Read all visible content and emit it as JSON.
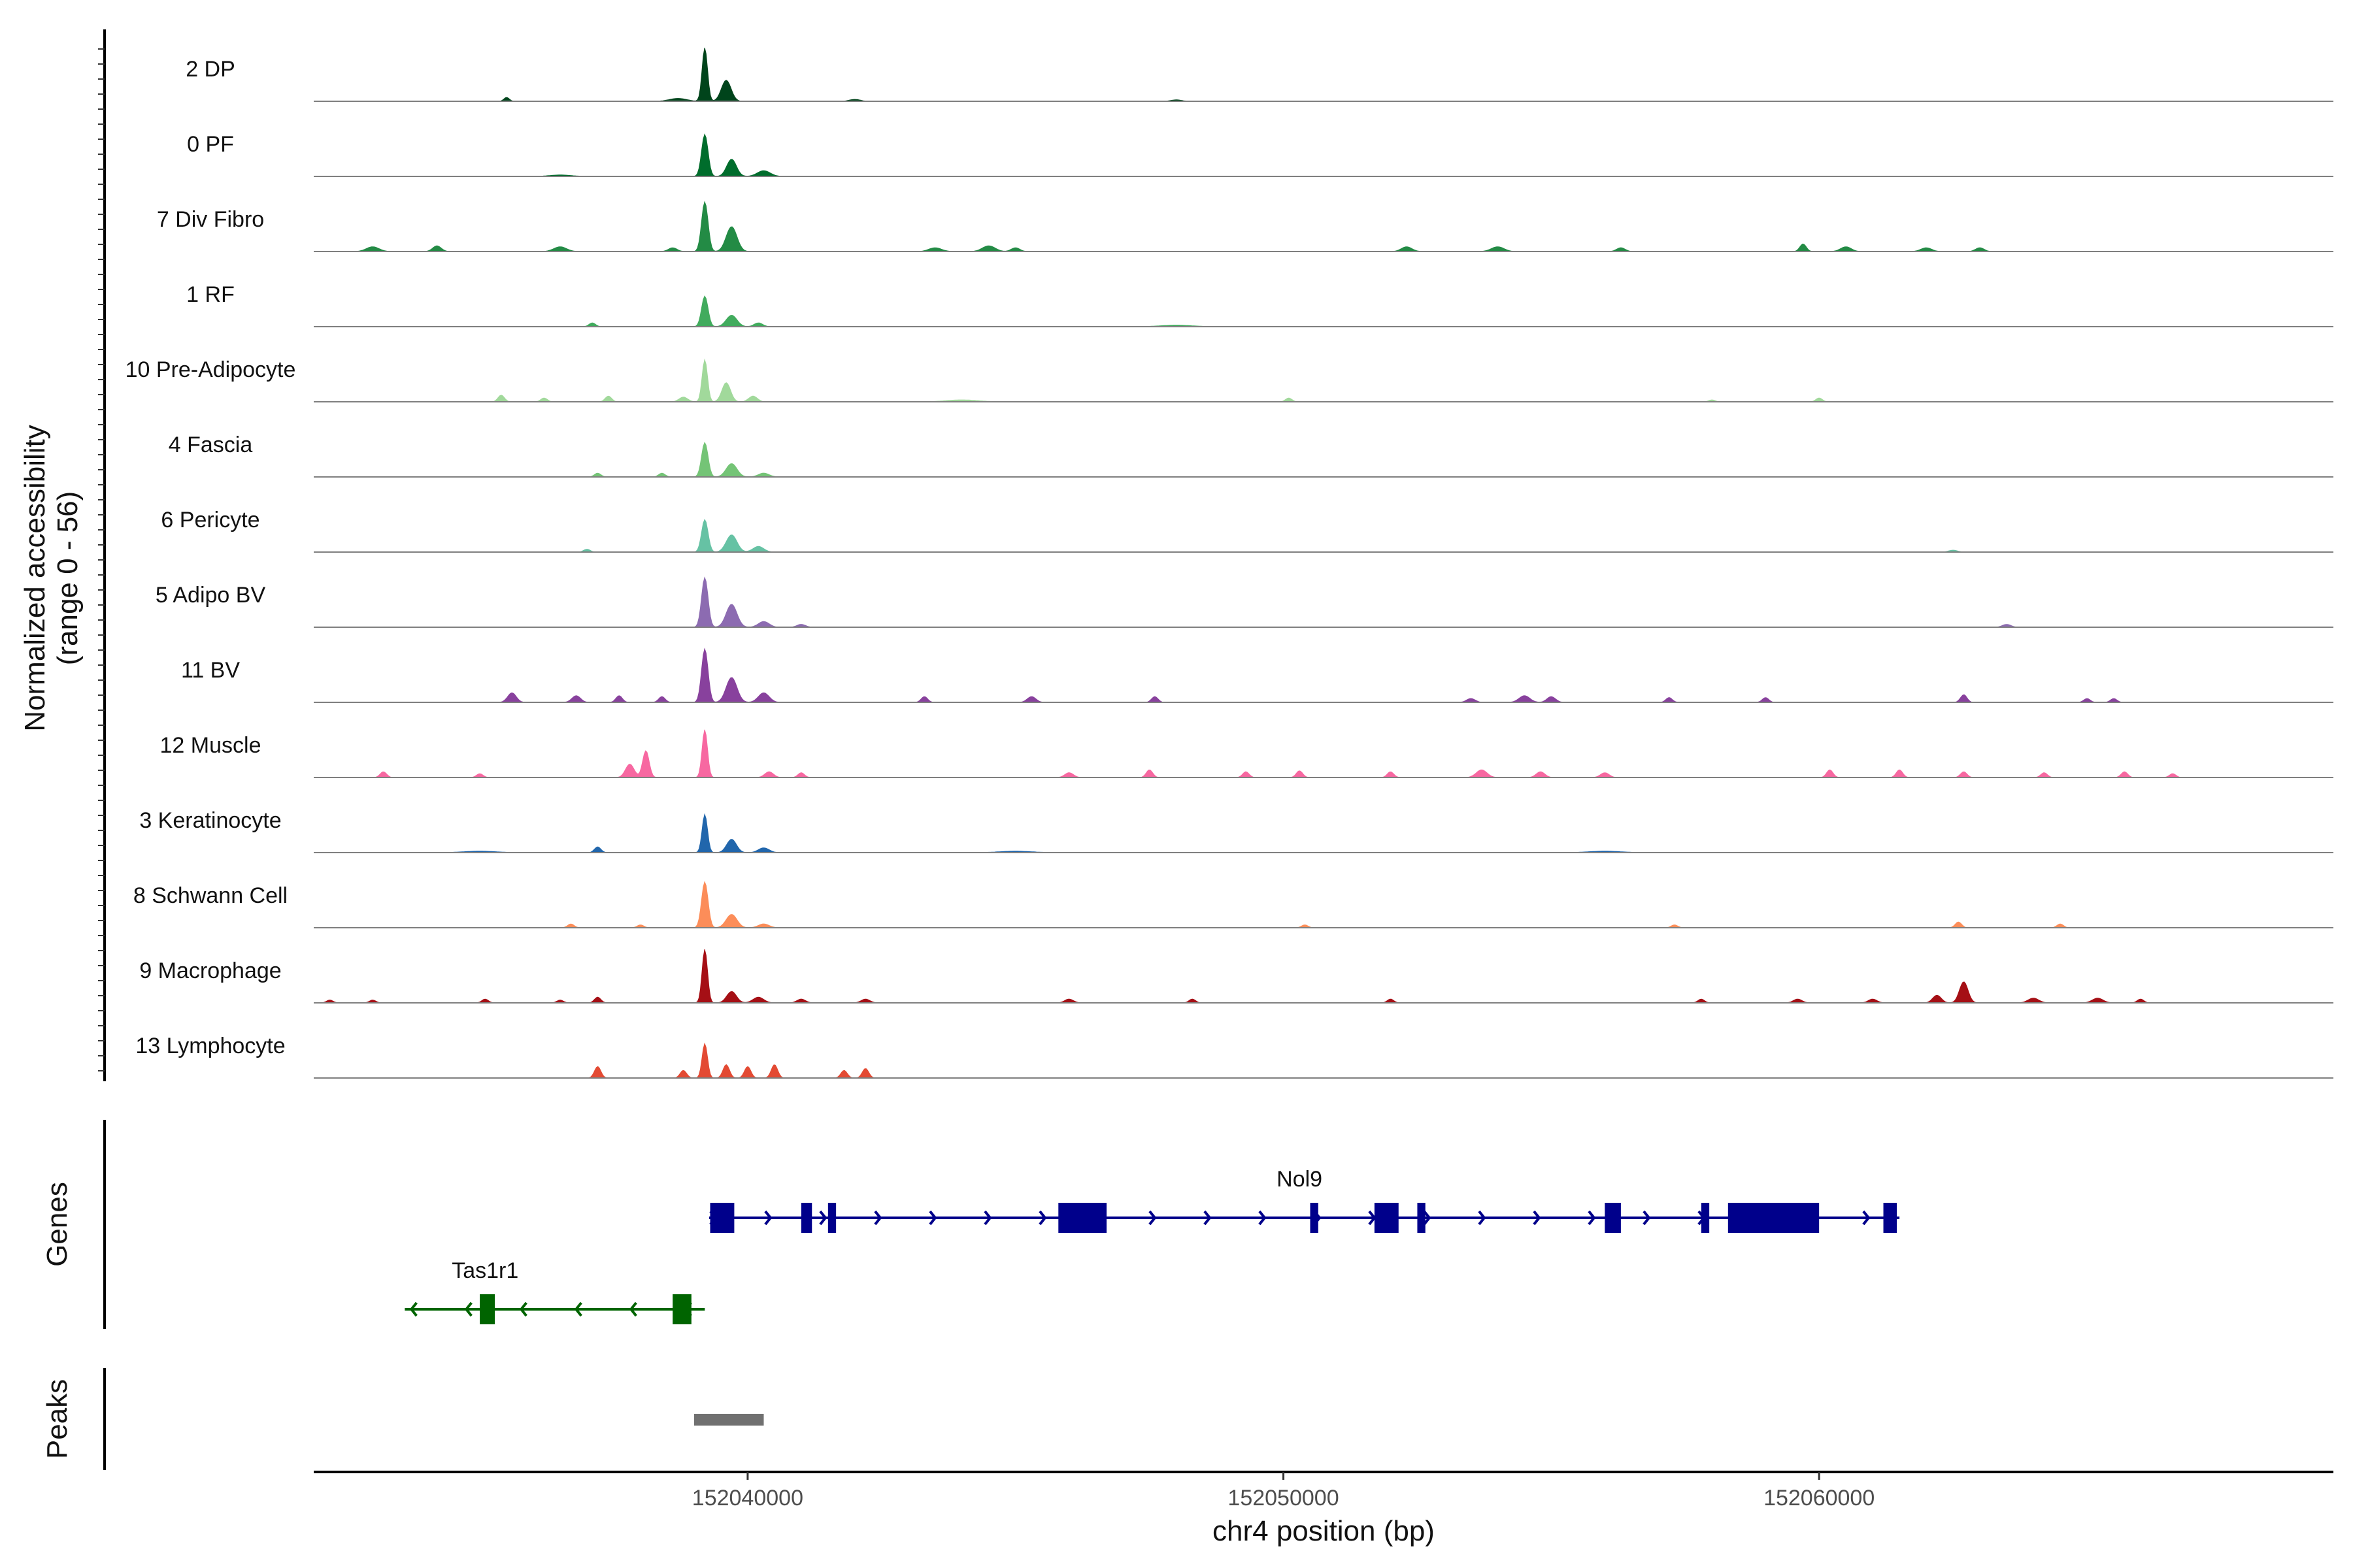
{
  "chart_data": {
    "type": "area",
    "ylabel": [
      "Normalized accessibility",
      "(range 0 - 56)"
    ],
    "ylim": [
      0,
      56
    ],
    "xlabel": "chr4 position (bp)",
    "xlim": [
      152031900,
      152069600
    ],
    "xticks": [
      152040000,
      152050000,
      152060000
    ],
    "xtick_labels": [
      "152040000",
      "152050000",
      "152060000"
    ],
    "tracks": [
      {
        "name": "2 DP",
        "color": "#00441b",
        "peaks": [
          [
            152039200,
            56,
            50
          ],
          [
            152039600,
            22,
            90
          ],
          [
            152038700,
            3,
            160
          ],
          [
            152035500,
            4,
            50
          ],
          [
            152042000,
            2,
            100
          ],
          [
            152048000,
            1.5,
            100
          ]
        ]
      },
      {
        "name": "0 PF",
        "color": "#006d2c",
        "peaks": [
          [
            152039200,
            44,
            60
          ],
          [
            152039700,
            18,
            90
          ],
          [
            152040300,
            6,
            120
          ],
          [
            152036500,
            1.5,
            200
          ]
        ]
      },
      {
        "name": "7 Div Fibro",
        "color": "#238b45",
        "peaks": [
          [
            152039200,
            52,
            60
          ],
          [
            152039700,
            26,
            100
          ],
          [
            152033000,
            5,
            120
          ],
          [
            152034200,
            6,
            80
          ],
          [
            152036500,
            5,
            120
          ],
          [
            152038600,
            4,
            80
          ],
          [
            152043500,
            4,
            120
          ],
          [
            152044500,
            6,
            120
          ],
          [
            152045000,
            4,
            80
          ],
          [
            152052300,
            5,
            100
          ],
          [
            152054000,
            5,
            120
          ],
          [
            152056300,
            4,
            80
          ],
          [
            152059700,
            8,
            60
          ],
          [
            152060500,
            5,
            100
          ],
          [
            152062000,
            4,
            100
          ],
          [
            152063000,
            4,
            80
          ]
        ]
      },
      {
        "name": "1 RF",
        "color": "#41ab5d",
        "peaks": [
          [
            152039200,
            32,
            60
          ],
          [
            152039700,
            12,
            100
          ],
          [
            152040200,
            4,
            80
          ],
          [
            152037100,
            4,
            60
          ],
          [
            152048000,
            1.5,
            300
          ]
        ]
      },
      {
        "name": "10 Pre-Adipocyte",
        "color": "#a1d99b",
        "peaks": [
          [
            152039200,
            44,
            50
          ],
          [
            152039600,
            20,
            80
          ],
          [
            152040100,
            6,
            80
          ],
          [
            152035400,
            7,
            60
          ],
          [
            152037400,
            6,
            60
          ],
          [
            152038800,
            5,
            80
          ],
          [
            152036200,
            4,
            60
          ],
          [
            152050100,
            4,
            60
          ],
          [
            152060000,
            4,
            60
          ],
          [
            152058000,
            2,
            60
          ],
          [
            152044000,
            2,
            300
          ]
        ]
      },
      {
        "name": "4 Fascia",
        "color": "#74c476",
        "peaks": [
          [
            152039200,
            36,
            60
          ],
          [
            152039700,
            14,
            100
          ],
          [
            152040300,
            4,
            100
          ],
          [
            152037200,
            4,
            60
          ],
          [
            152038400,
            4,
            60
          ]
        ]
      },
      {
        "name": "6 Pericyte",
        "color": "#66c2a4",
        "peaks": [
          [
            152039200,
            34,
            60
          ],
          [
            152039700,
            18,
            100
          ],
          [
            152040200,
            6,
            100
          ],
          [
            152037000,
            3,
            60
          ],
          [
            152062500,
            2,
            80
          ]
        ]
      },
      {
        "name": "5 Adipo BV",
        "color": "#8c6bb1",
        "peaks": [
          [
            152039200,
            52,
            60
          ],
          [
            152039700,
            24,
            100
          ],
          [
            152040300,
            6,
            100
          ],
          [
            152041000,
            3,
            80
          ],
          [
            152063500,
            3,
            80
          ]
        ]
      },
      {
        "name": "11 BV",
        "color": "#88419d",
        "peaks": [
          [
            152039200,
            56,
            60
          ],
          [
            152039700,
            26,
            100
          ],
          [
            152040300,
            10,
            100
          ],
          [
            152035600,
            10,
            80
          ],
          [
            152036800,
            7,
            80
          ],
          [
            152037600,
            7,
            60
          ],
          [
            152038400,
            6,
            60
          ],
          [
            152043300,
            6,
            60
          ],
          [
            152045300,
            6,
            80
          ],
          [
            152047600,
            6,
            60
          ],
          [
            152053500,
            4,
            80
          ],
          [
            152054500,
            7,
            100
          ],
          [
            152055000,
            6,
            80
          ],
          [
            152057200,
            5,
            60
          ],
          [
            152059000,
            5,
            60
          ],
          [
            152062700,
            8,
            60
          ],
          [
            152065000,
            4,
            60
          ],
          [
            152065500,
            4,
            60
          ]
        ]
      },
      {
        "name": "12 Muscle",
        "color": "#f768a1",
        "peaks": [
          [
            152038100,
            28,
            60
          ],
          [
            152039200,
            50,
            50
          ],
          [
            152037800,
            14,
            80
          ],
          [
            152033200,
            6,
            60
          ],
          [
            152035000,
            4,
            60
          ],
          [
            152040400,
            6,
            80
          ],
          [
            152041000,
            5,
            60
          ],
          [
            152046000,
            5,
            80
          ],
          [
            152047500,
            8,
            60
          ],
          [
            152049300,
            6,
            60
          ],
          [
            152050300,
            7,
            60
          ],
          [
            152052000,
            6,
            60
          ],
          [
            152053700,
            8,
            100
          ],
          [
            152054800,
            6,
            80
          ],
          [
            152056000,
            5,
            80
          ],
          [
            152060200,
            8,
            60
          ],
          [
            152061500,
            8,
            60
          ],
          [
            152062700,
            6,
            60
          ],
          [
            152064200,
            5,
            60
          ],
          [
            152065700,
            6,
            60
          ],
          [
            152066600,
            4,
            60
          ]
        ]
      },
      {
        "name": "3 Keratinocyte",
        "color": "#2166ac",
        "peaks": [
          [
            152039200,
            40,
            50
          ],
          [
            152039700,
            14,
            90
          ],
          [
            152040300,
            5,
            100
          ],
          [
            152037200,
            6,
            60
          ],
          [
            152035000,
            1.5,
            300
          ],
          [
            152045000,
            1.5,
            300
          ],
          [
            152056000,
            1.5,
            300
          ]
        ]
      },
      {
        "name": "8 Schwann Cell",
        "color": "#fc8d59",
        "peaks": [
          [
            152039200,
            48,
            60
          ],
          [
            152039700,
            14,
            100
          ],
          [
            152040300,
            4,
            100
          ],
          [
            152036700,
            4,
            60
          ],
          [
            152038000,
            3,
            60
          ],
          [
            152050400,
            3,
            60
          ],
          [
            152057300,
            3,
            60
          ],
          [
            152062600,
            6,
            60
          ],
          [
            152064500,
            4,
            60
          ]
        ]
      },
      {
        "name": "9 Macrophage",
        "color": "#a50f15",
        "peaks": [
          [
            152039200,
            56,
            50
          ],
          [
            152039700,
            12,
            90
          ],
          [
            152040200,
            6,
            100
          ],
          [
            152041000,
            4,
            80
          ],
          [
            152042200,
            4,
            80
          ],
          [
            152037200,
            6,
            60
          ],
          [
            152035100,
            4,
            60
          ],
          [
            152032200,
            3,
            60
          ],
          [
            152033000,
            3,
            60
          ],
          [
            152036500,
            3,
            60
          ],
          [
            152046000,
            4,
            80
          ],
          [
            152048300,
            4,
            60
          ],
          [
            152052000,
            4,
            60
          ],
          [
            152057800,
            4,
            60
          ],
          [
            152059600,
            4,
            80
          ],
          [
            152061000,
            4,
            80
          ],
          [
            152062200,
            8,
            80
          ],
          [
            152062700,
            22,
            80
          ],
          [
            152064000,
            5,
            100
          ],
          [
            152065200,
            5,
            100
          ],
          [
            152066000,
            4,
            60
          ]
        ]
      },
      {
        "name": "13 Lymphocyte",
        "color": "#e34a33",
        "peaks": [
          [
            152039200,
            36,
            50
          ],
          [
            152039600,
            14,
            60
          ],
          [
            152040000,
            12,
            60
          ],
          [
            152040500,
            14,
            60
          ],
          [
            152037200,
            12,
            60
          ],
          [
            152038800,
            8,
            60
          ],
          [
            152041800,
            8,
            60
          ],
          [
            152042200,
            10,
            60
          ]
        ]
      }
    ],
    "genes": [
      {
        "name": "Nol9",
        "strand": "+",
        "color": "#00008b",
        "start": 152039280,
        "end": 152061500,
        "exons": [
          [
            152039300,
            152039750
          ],
          [
            152041000,
            152041200
          ],
          [
            152041500,
            152041650
          ],
          [
            152045800,
            152046700
          ],
          [
            152050500,
            152050650
          ],
          [
            152051700,
            152052150
          ],
          [
            152052500,
            152052650
          ],
          [
            152056000,
            152056300
          ],
          [
            152057800,
            152057950
          ],
          [
            152058300,
            152060000
          ],
          [
            152061200,
            152061450
          ]
        ]
      },
      {
        "name": "Tas1r1",
        "strand": "-",
        "color": "#006400",
        "start": 152033600,
        "end": 152039200,
        "exons": [
          [
            152035000,
            152035280
          ],
          [
            152038600,
            152038950
          ]
        ]
      }
    ],
    "peaks_track": {
      "label": "Peaks",
      "color": "#707070",
      "regions": [
        [
          152039000,
          152040300
        ]
      ]
    },
    "panel_labels": {
      "genes": "Genes",
      "peaks": "Peaks"
    }
  }
}
